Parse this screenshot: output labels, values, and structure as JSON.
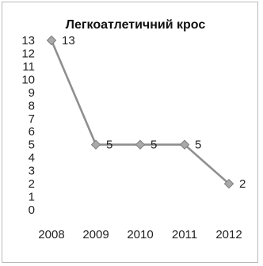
{
  "chart_data": {
    "type": "line",
    "title": "Легкоатлетичний крос",
    "categories": [
      "2008",
      "2009",
      "2010",
      "2011",
      "2012"
    ],
    "series": [
      {
        "values": [
          13,
          5,
          5,
          5,
          2
        ],
        "data_labels": [
          "13",
          "5",
          "5",
          "5",
          "2"
        ]
      }
    ],
    "ylim": [
      0,
      13
    ],
    "y_ticks": [
      "0",
      "1",
      "2",
      "3",
      "4",
      "5",
      "6",
      "7",
      "8",
      "9",
      "10",
      "11",
      "12",
      "13"
    ],
    "grid": false,
    "legend": "none",
    "colors": {
      "line": "#8f8f8f",
      "marker_fill": "#a9a9a9",
      "marker_stroke": "#7a7a7a"
    }
  }
}
